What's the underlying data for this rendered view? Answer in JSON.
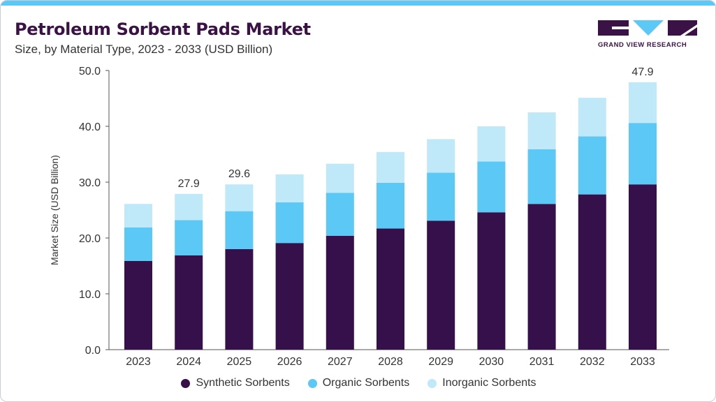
{
  "header": {
    "title": "Petroleum Sorbent Pads Market",
    "subtitle": "Size, by Material Type, 2023 - 2033 (USD Billion)"
  },
  "logo": {
    "text": "GRAND VIEW RESEARCH",
    "color": "#3a1245",
    "accent": "#5bc8f5"
  },
  "chart_data": {
    "type": "bar",
    "stacked": true,
    "categories": [
      "2023",
      "2024",
      "2025",
      "2026",
      "2027",
      "2028",
      "2029",
      "2030",
      "2031",
      "2032",
      "2033"
    ],
    "series": [
      {
        "name": "Synthetic Sorbents",
        "color": "#35104a",
        "values": [
          15.9,
          16.9,
          18.0,
          19.1,
          20.4,
          21.7,
          23.1,
          24.6,
          26.1,
          27.8,
          29.6
        ]
      },
      {
        "name": "Organic Sorbents",
        "color": "#5bc8f5",
        "values": [
          6.0,
          6.3,
          6.8,
          7.3,
          7.7,
          8.2,
          8.6,
          9.1,
          9.8,
          10.4,
          11.0
        ]
      },
      {
        "name": "Inorganic Sorbents",
        "color": "#bfe8f9",
        "values": [
          4.2,
          4.7,
          4.8,
          5.0,
          5.2,
          5.5,
          6.0,
          6.3,
          6.6,
          6.9,
          7.3
        ]
      }
    ],
    "data_labels": {
      "2024": "27.9",
      "2025": "29.6",
      "2033": "47.9"
    },
    "ylabel": "Market Size (USD Billion)",
    "xlabel": "",
    "ylim": [
      0,
      50
    ],
    "yticks": [
      "0.0",
      "10.0",
      "20.0",
      "30.0",
      "40.0",
      "50.0"
    ],
    "grid": false,
    "legend": "bottom"
  }
}
